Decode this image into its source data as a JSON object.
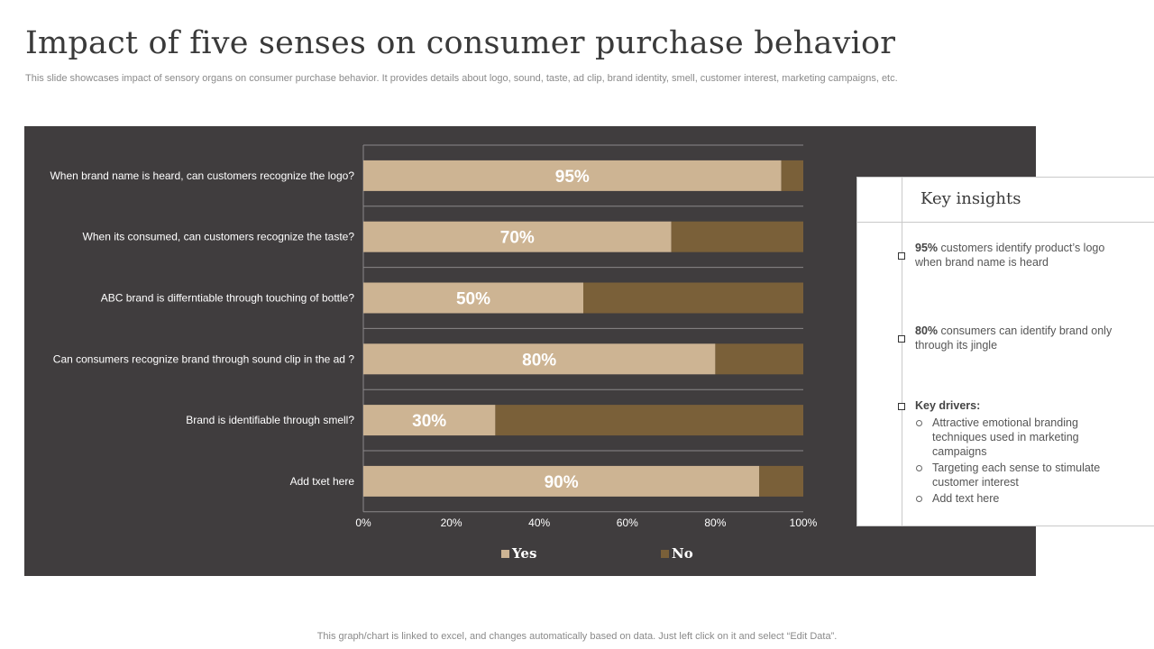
{
  "page": {
    "title": "Impact of five senses on consumer purchase behavior",
    "subtitle": "This slide showcases impact of sensory organs on consumer purchase behavior. It provides details about logo, sound, taste, ad clip, brand identity, smell, customer interest, marketing campaigns, etc.",
    "footer": "This graph/chart is linked to excel,  and changes automatically based on data. Just left click on it and select “Edit Data”."
  },
  "colors": {
    "panel_bg": "#403d3e",
    "yes": "#cdb493",
    "no": "#7a6039",
    "grid": "#8a8889",
    "text_light": "#ffffff"
  },
  "chart_data": {
    "type": "bar",
    "orientation": "horizontal",
    "stacked": true,
    "title": "",
    "xlabel": "",
    "ylabel": "",
    "xlim": [
      0,
      100
    ],
    "ticks": [
      "0%",
      "20%",
      "40%",
      "60%",
      "80%",
      "100%"
    ],
    "tick_values": [
      0,
      20,
      40,
      60,
      80,
      100
    ],
    "grid": true,
    "legend_position": "bottom",
    "categories": [
      "When brand name is heard, can customers recognize the logo?",
      "When its consumed, can customers recognize the taste?",
      "ABC brand is differntiable through touching of bottle?",
      "Can consumers recognize brand through sound clip in the ad ?",
      "Brand is identifiable through smell?",
      "Add txet here"
    ],
    "series": [
      {
        "name": "Yes",
        "values": [
          95,
          70,
          50,
          80,
          30,
          90
        ],
        "labels": [
          "95%",
          "70%",
          "50%",
          "80%",
          "30%",
          "90%"
        ]
      },
      {
        "name": "No",
        "values": [
          5,
          30,
          50,
          20,
          70,
          10
        ]
      }
    ]
  },
  "insights": {
    "title": "Key insights",
    "items": [
      {
        "highlight": "95%",
        "text": " customers identify product’s logo when brand  name is heard"
      },
      {
        "highlight": "80%",
        "text": " consumers can identify brand only through its jingle"
      }
    ],
    "drivers": {
      "heading": "Key drivers:",
      "items": [
        "Attractive emotional branding techniques used in marketing campaigns",
        "Targeting  each sense to stimulate customer interest",
        "Add text here"
      ]
    }
  }
}
